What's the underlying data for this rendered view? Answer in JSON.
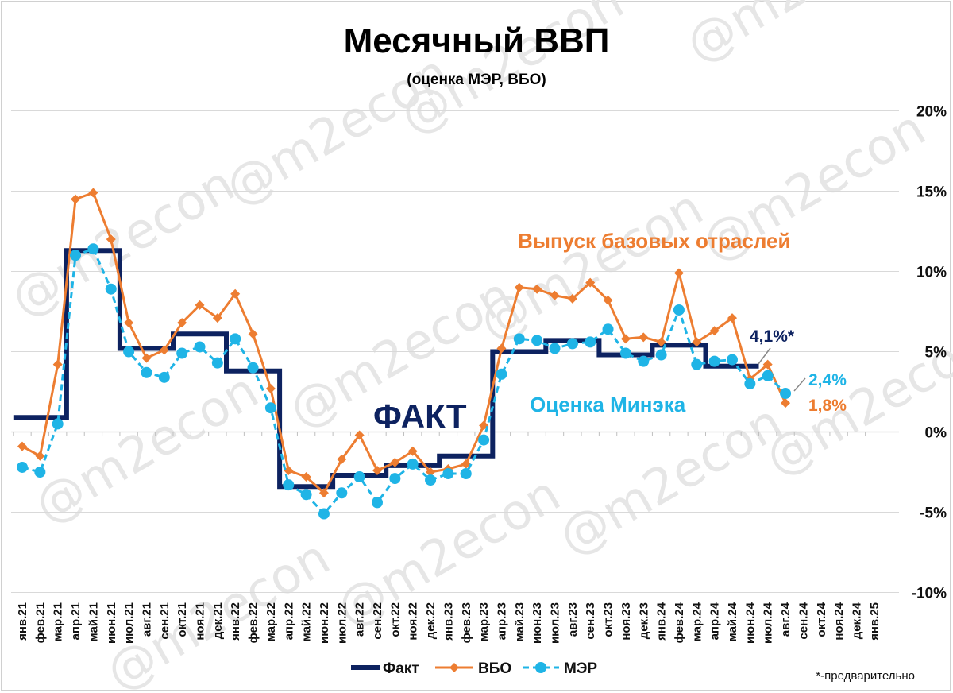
{
  "colors": {
    "fact": "#0d2260",
    "vbo": "#ed7d31",
    "mer": "#1fb4e6",
    "grid": "#d9d9d9"
  },
  "watermark": "@m2econ",
  "chart_data": {
    "type": "line",
    "title": "Месячный ВВП",
    "subtitle": "(оценка МЭР, ВБО)",
    "ylim": [
      -10,
      20
    ],
    "y_ticks": [
      20,
      15,
      10,
      5,
      0,
      -5,
      -10
    ],
    "y_tick_labels": [
      "20%",
      "15%",
      "10%",
      "5%",
      "0%",
      "-5%",
      "-10%"
    ],
    "y_axis_side": "right",
    "grid": true,
    "categories": [
      "янв.21",
      "фев.21",
      "мар.21",
      "апр.21",
      "май.21",
      "июн.21",
      "июл.21",
      "авг.21",
      "сен.21",
      "окт.21",
      "ноя.21",
      "дек.21",
      "янв.22",
      "фев.22",
      "мар.22",
      "апр.22",
      "май.22",
      "июн.22",
      "июл.22",
      "авг.22",
      "сен.22",
      "окт.22",
      "ноя.22",
      "дек.22",
      "янв.23",
      "фев.23",
      "мар.23",
      "апр.23",
      "май.23",
      "июн.23",
      "июл.23",
      "авг.23",
      "сен.23",
      "окт.23",
      "ноя.23",
      "дек.23",
      "янв.24",
      "фев.24",
      "мар.24",
      "апр.24",
      "май.24",
      "июн.24",
      "июл.24",
      "авг.24",
      "сен.24",
      "окт.24",
      "ноя.24",
      "дек.24",
      "янв.25"
    ],
    "series": [
      {
        "name": "Факт",
        "style": "step",
        "values": [
          0.9,
          0.9,
          0.9,
          11.3,
          11.3,
          11.3,
          5.2,
          5.2,
          5.2,
          6.1,
          6.1,
          6.1,
          3.8,
          3.8,
          3.8,
          -3.4,
          -3.4,
          -3.4,
          -2.7,
          -2.7,
          -2.7,
          -2.1,
          -2.1,
          -2.1,
          -1.5,
          -1.5,
          -1.5,
          5.0,
          5.0,
          5.0,
          5.7,
          5.7,
          5.7,
          4.8,
          4.8,
          4.8,
          5.4,
          5.4,
          5.4,
          4.1,
          4.1,
          4.1,
          null,
          null,
          null,
          null,
          null,
          null,
          null
        ]
      },
      {
        "name": "ВБО",
        "marker": "diamond",
        "values": [
          -0.9,
          -1.5,
          4.2,
          14.5,
          14.9,
          12.0,
          6.8,
          4.6,
          5.1,
          6.8,
          7.9,
          7.1,
          8.6,
          6.1,
          2.7,
          -2.4,
          -2.8,
          -3.8,
          -1.7,
          -0.2,
          -2.4,
          -1.9,
          -1.2,
          -2.5,
          -2.3,
          -2.0,
          0.4,
          5.2,
          9.0,
          8.9,
          8.5,
          8.3,
          9.3,
          8.2,
          5.8,
          5.9,
          5.6,
          9.9,
          5.6,
          6.3,
          7.1,
          3.3,
          4.2,
          1.8,
          null,
          null,
          null,
          null,
          null
        ]
      },
      {
        "name": "МЭР",
        "marker": "circle",
        "values": [
          -2.2,
          -2.5,
          0.5,
          11.0,
          11.4,
          8.9,
          5.0,
          3.7,
          3.4,
          4.9,
          5.3,
          4.3,
          5.8,
          4.0,
          1.5,
          -3.3,
          -3.9,
          -5.1,
          -3.8,
          -2.8,
          -4.4,
          -2.9,
          -2.0,
          -3.0,
          -2.6,
          -2.6,
          -0.5,
          3.6,
          5.8,
          5.7,
          5.2,
          5.5,
          5.6,
          6.4,
          4.9,
          4.4,
          4.8,
          7.6,
          4.2,
          4.4,
          4.5,
          3.0,
          3.5,
          2.4,
          null,
          null,
          null,
          null,
          null
        ]
      }
    ],
    "annotations": {
      "fact_last": "4,1%*",
      "mer_last": "2,4%",
      "vbo_last": "1,8%",
      "fact_label": "ФАКТ",
      "vbo_label": "Выпуск базовых отраслей",
      "mer_label": "Оценка Минэка"
    },
    "legend": {
      "position": "bottom",
      "entries": [
        "Факт",
        "ВБО",
        "МЭР"
      ]
    },
    "footnote": "*-предварительно"
  }
}
